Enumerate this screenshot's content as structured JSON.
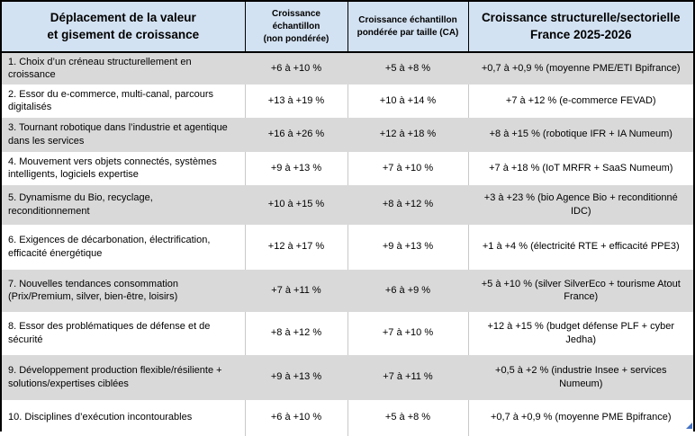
{
  "colors": {
    "header_bg": "#d3e2f2",
    "alt_row_bg": "#d9d9d9",
    "row_bg": "#ffffff",
    "outer_border": "#000000",
    "grid_line": "#c9c9c9",
    "resize_handle_blue": "#4472c4"
  },
  "table": {
    "headers": [
      {
        "lines": [
          "Déplacement de la valeur",
          "et gisement de croissance"
        ]
      },
      {
        "lines": [
          "Croissance échantillon",
          "(non pondérée)"
        ]
      },
      {
        "lines": [
          "Croissance échantillon",
          "pondérée par taille (CA)"
        ]
      },
      {
        "lines": [
          "Croissance structurelle/sectorielle",
          "France 2025-2026"
        ]
      }
    ],
    "rows": [
      {
        "cells": [
          "1. Choix d’un créneau structurellement en croissance",
          "+6 à +10 %",
          "+5 à +8 %",
          "+0,7 à +0,9 % (moyenne PME/ETI Bpifrance)"
        ]
      },
      {
        "cells": [
          "2. Essor du e-commerce, multi-canal, parcours digitalisés",
          "+13 à +19 %",
          "+10 à +14 %",
          "+7 à +12 % (e-commerce FEVAD)"
        ]
      },
      {
        "cells": [
          "3. Tournant robotique dans l’industrie et agentique dans les services",
          "+16 à +26 %",
          "+12 à +18 %",
          "+8 à +15 % (robotique IFR + IA Numeum)"
        ]
      },
      {
        "cells": [
          "4. Mouvement vers objets connectés, systèmes intelligents, logiciels expertise",
          "+9 à +13 %",
          "+7 à +10 %",
          "+7 à +18 % (IoT MRFR + SaaS Numeum)"
        ]
      },
      {
        "cells": [
          "5. Dynamisme du Bio, recyclage, reconditionnement",
          "+10 à +15 %",
          "+8 à +12 %",
          "+3 à +23 % (bio Agence Bio + reconditionné IDC)"
        ]
      },
      {
        "cells": [
          "6. Exigences de décarbonation, électrification, efficacité énergétique",
          "+12 à +17 %",
          "+9 à +13 %",
          "+1 à +4 % (électricité RTE + efficacité PPE3)"
        ]
      },
      {
        "cells": [
          "7. Nouvelles tendances consommation (Prix/Premium, silver, bien-être, loisirs)",
          "+7 à +11 %",
          "+6 à +9 %",
          "+5 à +10 % (silver SilverEco + tourisme Atout France)"
        ]
      },
      {
        "cells": [
          "8. Essor des problématiques de défense et de sécurité",
          "+8 à +12 %",
          "+7 à +10 %",
          "+12 à +15 % (budget défense PLF + cyber Jedha)"
        ]
      },
      {
        "cells": [
          "9. Développement production flexible/résiliente + solutions/expertises ciblées",
          "+9 à +13 %",
          "+7 à +11 %",
          "+0,5 à +2 % (industrie Insee + services Numeum)"
        ]
      },
      {
        "cells": [
          "10. Disciplines d’exécution incontourables",
          "+6 à +10 %",
          "+5 à +8 %",
          "+0,7 à +0,9 % (moyenne PME Bpifrance)"
        ]
      }
    ]
  }
}
